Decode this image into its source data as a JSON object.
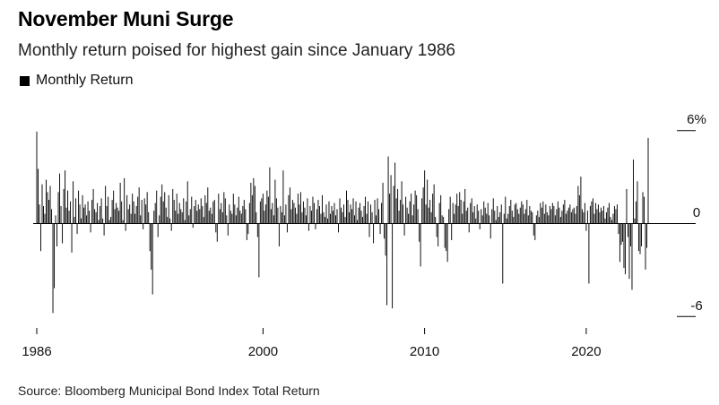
{
  "chart_data": {
    "type": "bar",
    "title": "November Muni Surge",
    "subtitle": "Monthly return poised for highest gain since January 1986",
    "legend": [
      "Monthly Return"
    ],
    "source": "Source: Bloomberg Municipal Bond Index Total Return",
    "x_start": "1986-01",
    "x_end": "2022-11",
    "x_tick_labels": [
      "1986",
      "2000",
      "2010",
      "2020"
    ],
    "x_tick_years": [
      1986,
      2000,
      2010,
      2020
    ],
    "y_tick_labels": [
      "6%",
      "0",
      "-6"
    ],
    "y_tick_values": [
      6,
      0,
      -6
    ],
    "ylim": [
      -6.5,
      7
    ],
    "series": [
      {
        "values": [
          5.9,
          3.5,
          1.2,
          -1.8,
          2.5,
          1.1,
          0.6,
          2.8,
          2.0,
          1.5,
          2.4,
          0.9,
          -5.8,
          -4.2,
          0.5,
          -1.5,
          2.0,
          3.2,
          1.1,
          -1.3,
          2.2,
          3.4,
          1.0,
          2.1,
          0.8,
          1.4,
          -1.9,
          2.7,
          0.4,
          1.6,
          -0.7,
          2.1,
          1.2,
          0.3,
          1.8,
          1.0,
          1.2,
          0.5,
          1.4,
          0.8,
          -0.6,
          1.5,
          2.2,
          0.9,
          0.7,
          1.3,
          0.2,
          1.1,
          1.6,
          0.3,
          -0.8,
          2.4,
          1.1,
          1.7,
          0.2,
          0.4,
          1.5,
          2.1,
          0.9,
          1.3,
          1.0,
          0.8,
          2.6,
          1.4,
          0.2,
          2.9,
          -0.5,
          1.8,
          0.9,
          1.2,
          0.6,
          1.9,
          1.4,
          0.6,
          1.1,
          1.7,
          2.3,
          0.5,
          1.5,
          -0.4,
          1.6,
          1.2,
          2.0,
          0.7,
          -1.8,
          -3.0,
          -4.6,
          0.8,
          1.3,
          2.1,
          -0.9,
          0.5,
          1.7,
          2.5,
          1.4,
          2.0,
          1.0,
          0.4,
          1.8,
          0.3,
          -0.5,
          2.2,
          1.5,
          0.8,
          1.9,
          0.6,
          1.3,
          0.9,
          0.7,
          1.6,
          0.2,
          1.4,
          2.7,
          0.5,
          0.9,
          1.7,
          -0.3,
          1.1,
          1.5,
          0.8,
          1.2,
          0.9,
          1.6,
          1.1,
          0.4,
          1.8,
          1.3,
          2.3,
          0.8,
          1.0,
          0.6,
          1.4,
          1.5,
          -0.6,
          -1.2,
          1.9,
          0.9,
          1.3,
          0.7,
          2.0,
          1.6,
          0.5,
          -0.8,
          1.2,
          0.8,
          0.6,
          1.9,
          1.2,
          0.5,
          1.0,
          1.7,
          0.8,
          0.6,
          1.1,
          1.5,
          0.9,
          -1.1,
          -0.7,
          1.3,
          2.6,
          1.8,
          2.9,
          2.4,
          0.7,
          -0.9,
          -3.5,
          1.4,
          1.6,
          1.9,
          0.8,
          1.2,
          2.1,
          1.7,
          3.6,
          0.9,
          1.3,
          0.5,
          2.8,
          1.6,
          1.0,
          -1.5,
          1.1,
          0.7,
          3.4,
          0.5,
          1.2,
          -0.6,
          1.8,
          2.3,
          0.9,
          1.5,
          1.3,
          1.0,
          0.6,
          1.9,
          1.2,
          2.0,
          0.7,
          1.4,
          1.0,
          0.5,
          1.6,
          -0.5,
          1.1,
          0.8,
          1.7,
          1.3,
          -0.4,
          0.9,
          1.5,
          1.1,
          0.6,
          1.8,
          0.7,
          0.4,
          1.2,
          0.3,
          1.4,
          0.6,
          1.1,
          0.8,
          1.3,
          0.5,
          0.9,
          -0.6,
          1.6,
          1.0,
          0.7,
          1.2,
          0.4,
          2.1,
          1.5,
          0.7,
          1.2,
          0.9,
          1.6,
          0.5,
          1.4,
          0.2,
          1.0,
          1.3,
          0.8,
          0.4,
          1.1,
          1.7,
          0.6,
          1.4,
          -0.9,
          1.2,
          0.7,
          -1.3,
          1.5,
          0.5,
          1.6,
          0.9,
          -0.7,
          1.3,
          2.6,
          -1.0,
          -2.1,
          -5.3,
          4.3,
          1.9,
          3.1,
          -5.5,
          2.4,
          3.9,
          1.6,
          2.2,
          0.8,
          1.5,
          2.7,
          1.2,
          -0.8,
          1.7,
          1.0,
          0.6,
          1.4,
          1.9,
          0.5,
          1.2,
          2.1,
          1.8,
          0.9,
          -1.2,
          -2.8,
          1.6,
          2.3,
          3.4,
          1.2,
          2.8,
          1.0,
          1.5,
          0.7,
          1.9,
          2.5,
          0.4,
          -0.9,
          -1.5,
          1.3,
          1.8,
          0.5,
          0.4,
          -1.6,
          -1.8,
          -2.5,
          0.9,
          1.7,
          -1.1,
          1.3,
          0.6,
          1.2,
          1.9,
          1.1,
          2.0,
          1.5,
          0.6,
          1.4,
          2.2,
          0.8,
          1.0,
          -0.6,
          1.3,
          1.6,
          0.7,
          1.1,
          0.3,
          1.2,
          0.8,
          -0.4,
          0.9,
          0.5,
          1.4,
          1.0,
          0.6,
          1.3,
          0.5,
          -1.0,
          0.9,
          1.6,
          0.8,
          0.2,
          1.1,
          0.4,
          0.7,
          1.2,
          -3.9,
          0.6,
          1.7,
          0.3,
          0.6,
          1.1,
          1.5,
          0.8,
          0.4,
          1.2,
          1.3,
          0.9,
          0.6,
          1.0,
          1.4,
          1.2,
          0.6,
          0.9,
          1.5,
          0.5,
          1.1,
          0.8,
          0.7,
          -0.8,
          -1.1,
          0.5,
          0.8,
          0.4,
          1.3,
          1.0,
          1.4,
          0.6,
          1.2,
          0.7,
          0.5,
          1.1,
          0.9,
          1.3,
          1.1,
          0.5,
          0.9,
          1.4,
          1.0,
          0.4,
          0.8,
          1.2,
          1.5,
          0.6,
          0.8,
          1.0,
          1.2,
          0.7,
          0.9,
          1.0,
          0.6,
          1.1,
          2.4,
          1.8,
          3.0,
          0.9,
          0.7,
          1.3,
          -0.5,
          0.8,
          -3.9,
          1.1,
          1.4,
          1.6,
          0.6,
          1.3,
          0.9,
          1.2,
          0.7,
          1.0,
          0.8,
          1.1,
          0.3,
          0.7,
          1.0,
          1.3,
          0.4,
          0.2,
          0.6,
          1.1,
          0.9,
          1.2,
          -0.7,
          -2.5,
          -1.4,
          -1.2,
          -2.9,
          -3.3,
          2.2,
          -0.9,
          -3.6,
          -1.5,
          -4.3,
          4.1,
          0.3,
          1.4,
          2.7,
          -1.8,
          -2.0,
          -1.5,
          2.0,
          1.7,
          -3.0,
          -1.6,
          5.5
        ]
      }
    ]
  }
}
